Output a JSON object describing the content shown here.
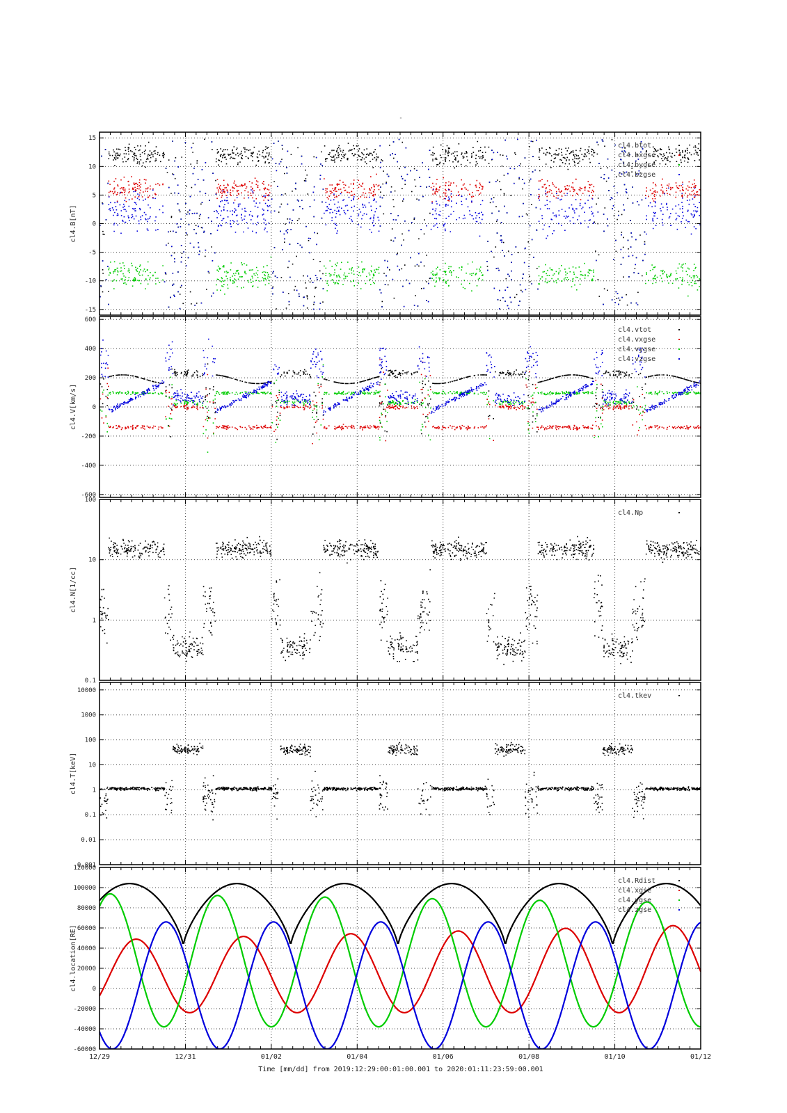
{
  "page": {
    "title": "-"
  },
  "x_axis": {
    "ticks": [
      "12/29",
      "12/31",
      "01/02",
      "01/04",
      "01/06",
      "01/08",
      "01/10",
      "01/12"
    ],
    "range_days": [
      0,
      14
    ],
    "footer": "Time [mm/dd]  from 2019:12:29:00:01:00.001  to  2020:01:11:23:59:00.001"
  },
  "chart_data": [
    {
      "type": "scatter",
      "panel": "B",
      "ylabel": "cl4.B[nT]",
      "ylim": [
        -16,
        16
      ],
      "yticks": [
        "15",
        "10",
        "5",
        "0",
        "-5",
        "-10",
        "-15"
      ],
      "ytick_values": [
        15,
        10,
        5,
        0,
        -5,
        -10,
        -15
      ],
      "grid": true,
      "legend_placement": "top-right",
      "series": [
        {
          "name": "cl4.btot",
          "color": "#000000"
        },
        {
          "name": "cl4.bxgse",
          "color": "#dd0000"
        },
        {
          "name": "cl4.bygse",
          "color": "#00cc00"
        },
        {
          "name": "cl4.bzgse",
          "color": "#0000dd"
        }
      ]
    },
    {
      "type": "scatter",
      "panel": "V",
      "ylabel": "cl4.V[km/s]",
      "ylim": [
        -620,
        620
      ],
      "yticks": [
        "600",
        "400",
        "200",
        "0",
        "-200",
        "-400",
        "-600"
      ],
      "ytick_values": [
        600,
        400,
        200,
        0,
        -200,
        -400,
        -600
      ],
      "grid": true,
      "legend_placement": "top-right",
      "series": [
        {
          "name": "cl4.vtot",
          "color": "#000000"
        },
        {
          "name": "cl4.vxgse",
          "color": "#dd0000"
        },
        {
          "name": "cl4.vygse",
          "color": "#00cc00"
        },
        {
          "name": "cl4.vzgse",
          "color": "#0000dd"
        }
      ]
    },
    {
      "type": "scatter",
      "panel": "N",
      "ylabel": "cl4.N[1/cc]",
      "ylim": [
        0.1,
        100
      ],
      "scale": "log",
      "yticks": [
        "100",
        "10",
        "1",
        "0.1"
      ],
      "ytick_values": [
        100,
        10,
        1,
        0.1
      ],
      "grid": true,
      "legend_placement": "top-right",
      "series": [
        {
          "name": "cl4.Np",
          "color": "#000000"
        }
      ]
    },
    {
      "type": "scatter",
      "panel": "T",
      "ylabel": "cl4.T[keV]",
      "ylim": [
        0.001,
        20000
      ],
      "scale": "log",
      "yticks": [
        "10000",
        "1000",
        "100",
        "10",
        "1",
        "0.1",
        "0.01",
        "0.001"
      ],
      "ytick_values": [
        10000,
        1000,
        100,
        10,
        1,
        0.1,
        0.01,
        0.001
      ],
      "grid": true,
      "legend_placement": "top-right",
      "series": [
        {
          "name": "cl4.tkev",
          "color": "#000000"
        }
      ]
    },
    {
      "type": "line",
      "panel": "location",
      "ylabel": "cl4.location[RE]",
      "ylim": [
        -60000,
        120000
      ],
      "yticks": [
        "120000",
        "100000",
        "80000",
        "60000",
        "40000",
        "20000",
        "0",
        "-20000",
        "-40000",
        "-60000"
      ],
      "ytick_values": [
        120000,
        100000,
        80000,
        60000,
        40000,
        20000,
        0,
        -20000,
        -40000,
        -60000
      ],
      "grid": true,
      "legend_placement": "top-right",
      "series": [
        {
          "name": "cl4.Rdist",
          "color": "#000000",
          "period_days": 2.5,
          "min": 42000,
          "max": 104000,
          "first_min_day": 1.95
        },
        {
          "name": "cl4.xgse",
          "color": "#dd0000",
          "period_days": 2.5,
          "min": -24000,
          "max_start": 48000,
          "max_end": 63000,
          "first_max_day": 0.85
        },
        {
          "name": "cl4.ygse",
          "color": "#00cc00",
          "period_days": 2.5,
          "min": -38000,
          "max_start": 94000,
          "max_end": 85000,
          "first_max_day": 0.25
        },
        {
          "name": "cl4.zgse",
          "color": "#0000dd",
          "period_days": 2.5,
          "min": -60000,
          "max": 66000,
          "first_max_day": 1.55
        }
      ]
    }
  ]
}
